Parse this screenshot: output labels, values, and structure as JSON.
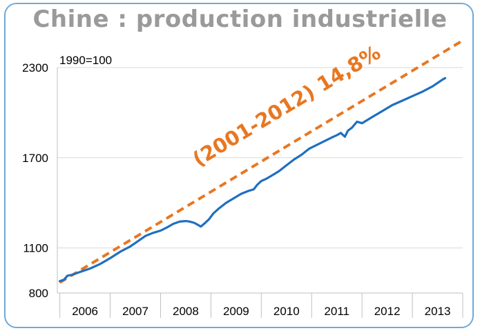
{
  "title": "Chine : production industrielle",
  "colors": {
    "frame": "#6fa9d8",
    "series": "#1f6fbf",
    "trend": "#e87722",
    "title": "#9a9a9a",
    "grid": "#d9d9d9"
  },
  "chart_data": {
    "type": "line",
    "title": "Chine : production industrielle",
    "note": "1990=100",
    "annotation": "(2001-2012) 14,8%",
    "ylim": [
      800,
      2300
    ],
    "yticks": [
      800,
      1100,
      1700,
      2300
    ],
    "xlim": [
      2005.95,
      2014.0
    ],
    "x_categories": [
      "2006",
      "2007",
      "2008",
      "2009",
      "2010",
      "2011",
      "2012",
      "2013"
    ],
    "grid": "horizontal",
    "series": [
      {
        "kind": "actual",
        "x": [
          2006.0,
          2006.08,
          2006.15,
          2006.25,
          2006.4,
          2006.6,
          2006.8,
          2007.0,
          2007.2,
          2007.4,
          2007.55,
          2007.7,
          2007.85,
          2008.0,
          2008.12,
          2008.25,
          2008.38,
          2008.5,
          2008.58,
          2008.66,
          2008.72,
          2008.8,
          2008.88,
          2008.96,
          2009.05,
          2009.15,
          2009.3,
          2009.45,
          2009.6,
          2009.75,
          2009.85,
          2009.92,
          2010.0,
          2010.1,
          2010.2,
          2010.35,
          2010.5,
          2010.65,
          2010.8,
          2010.95,
          2011.1,
          2011.25,
          2011.4,
          2011.5,
          2011.58,
          2011.66,
          2011.72,
          2011.8,
          2011.9,
          2012.0,
          2012.2,
          2012.4,
          2012.6,
          2012.8,
          2013.0,
          2013.2,
          2013.4,
          2013.6,
          2013.65
        ],
        "values": [
          879,
          888,
          915,
          922,
          940,
          963,
          993,
          1032,
          1075,
          1110,
          1145,
          1180,
          1200,
          1215,
          1235,
          1260,
          1275,
          1279,
          1275,
          1268,
          1258,
          1242,
          1265,
          1290,
          1330,
          1360,
          1400,
          1430,
          1460,
          1480,
          1490,
          1520,
          1545,
          1560,
          1580,
          1610,
          1650,
          1688,
          1720,
          1760,
          1785,
          1810,
          1835,
          1850,
          1865,
          1840,
          1880,
          1900,
          1940,
          1930,
          1970,
          2010,
          2050,
          2080,
          2110,
          2140,
          2175,
          2220,
          2230
        ]
      },
      {
        "kind": "trend",
        "x": [
          2006.0,
          2014.0
        ],
        "values": [
          870,
          2480
        ]
      }
    ]
  }
}
